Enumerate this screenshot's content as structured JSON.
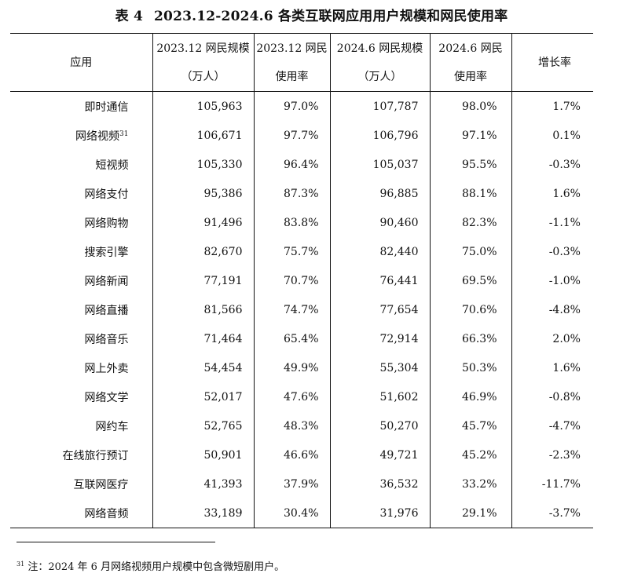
{
  "caption": {
    "label": "表 4",
    "title": "2023.12-2024.6 各类互联网应用用户规模和网民使用率"
  },
  "headers": {
    "app": "应用",
    "dec_users_line1": "2023.12 网民规模",
    "dec_users_line2": "（万人）",
    "dec_rate_line1": "2023.12 网民",
    "dec_rate_line2": "使用率",
    "jun_users_line1": "2024.6 网民规模",
    "jun_users_line2": "（万人）",
    "jun_rate_line1": "2024.6 网民",
    "jun_rate_line2": "使用率",
    "growth": "增长率"
  },
  "rows": [
    {
      "name": "即时通信",
      "sup": "",
      "dec_users": "105,963",
      "dec_rate": "97.0%",
      "jun_users": "107,787",
      "jun_rate": "98.0%",
      "growth": "1.7%"
    },
    {
      "name": "网络视频",
      "sup": "31",
      "dec_users": "106,671",
      "dec_rate": "97.7%",
      "jun_users": "106,796",
      "jun_rate": "97.1%",
      "growth": "0.1%"
    },
    {
      "name": "短视频",
      "sup": "",
      "dec_users": "105,330",
      "dec_rate": "96.4%",
      "jun_users": "105,037",
      "jun_rate": "95.5%",
      "growth": "-0.3%"
    },
    {
      "name": "网络支付",
      "sup": "",
      "dec_users": "95,386",
      "dec_rate": "87.3%",
      "jun_users": "96,885",
      "jun_rate": "88.1%",
      "growth": "1.6%"
    },
    {
      "name": "网络购物",
      "sup": "",
      "dec_users": "91,496",
      "dec_rate": "83.8%",
      "jun_users": "90,460",
      "jun_rate": "82.3%",
      "growth": "-1.1%"
    },
    {
      "name": "搜索引擎",
      "sup": "",
      "dec_users": "82,670",
      "dec_rate": "75.7%",
      "jun_users": "82,440",
      "jun_rate": "75.0%",
      "growth": "-0.3%"
    },
    {
      "name": "网络新闻",
      "sup": "",
      "dec_users": "77,191",
      "dec_rate": "70.7%",
      "jun_users": "76,441",
      "jun_rate": "69.5%",
      "growth": "-1.0%"
    },
    {
      "name": "网络直播",
      "sup": "",
      "dec_users": "81,566",
      "dec_rate": "74.7%",
      "jun_users": "77,654",
      "jun_rate": "70.6%",
      "growth": "-4.8%"
    },
    {
      "name": "网络音乐",
      "sup": "",
      "dec_users": "71,464",
      "dec_rate": "65.4%",
      "jun_users": "72,914",
      "jun_rate": "66.3%",
      "growth": "2.0%"
    },
    {
      "name": "网上外卖",
      "sup": "",
      "dec_users": "54,454",
      "dec_rate": "49.9%",
      "jun_users": "55,304",
      "jun_rate": "50.3%",
      "growth": "1.6%"
    },
    {
      "name": "网络文学",
      "sup": "",
      "dec_users": "52,017",
      "dec_rate": "47.6%",
      "jun_users": "51,602",
      "jun_rate": "46.9%",
      "growth": "-0.8%"
    },
    {
      "name": "网约车",
      "sup": "",
      "dec_users": "52,765",
      "dec_rate": "48.3%",
      "jun_users": "50,270",
      "jun_rate": "45.7%",
      "growth": "-4.7%"
    },
    {
      "name": "在线旅行预订",
      "sup": "",
      "dec_users": "50,901",
      "dec_rate": "46.6%",
      "jun_users": "49,721",
      "jun_rate": "45.2%",
      "growth": "-2.3%"
    },
    {
      "name": "互联网医疗",
      "sup": "",
      "dec_users": "41,393",
      "dec_rate": "37.9%",
      "jun_users": "36,532",
      "jun_rate": "33.2%",
      "growth": "-11.7%"
    },
    {
      "name": "网络音频",
      "sup": "",
      "dec_users": "33,189",
      "dec_rate": "30.4%",
      "jun_users": "31,976",
      "jun_rate": "29.1%",
      "growth": "-3.7%"
    }
  ],
  "footnote": {
    "marker": "31",
    "text": "注：2024 年 6 月网络视频用户规模中包含微短剧用户。"
  }
}
